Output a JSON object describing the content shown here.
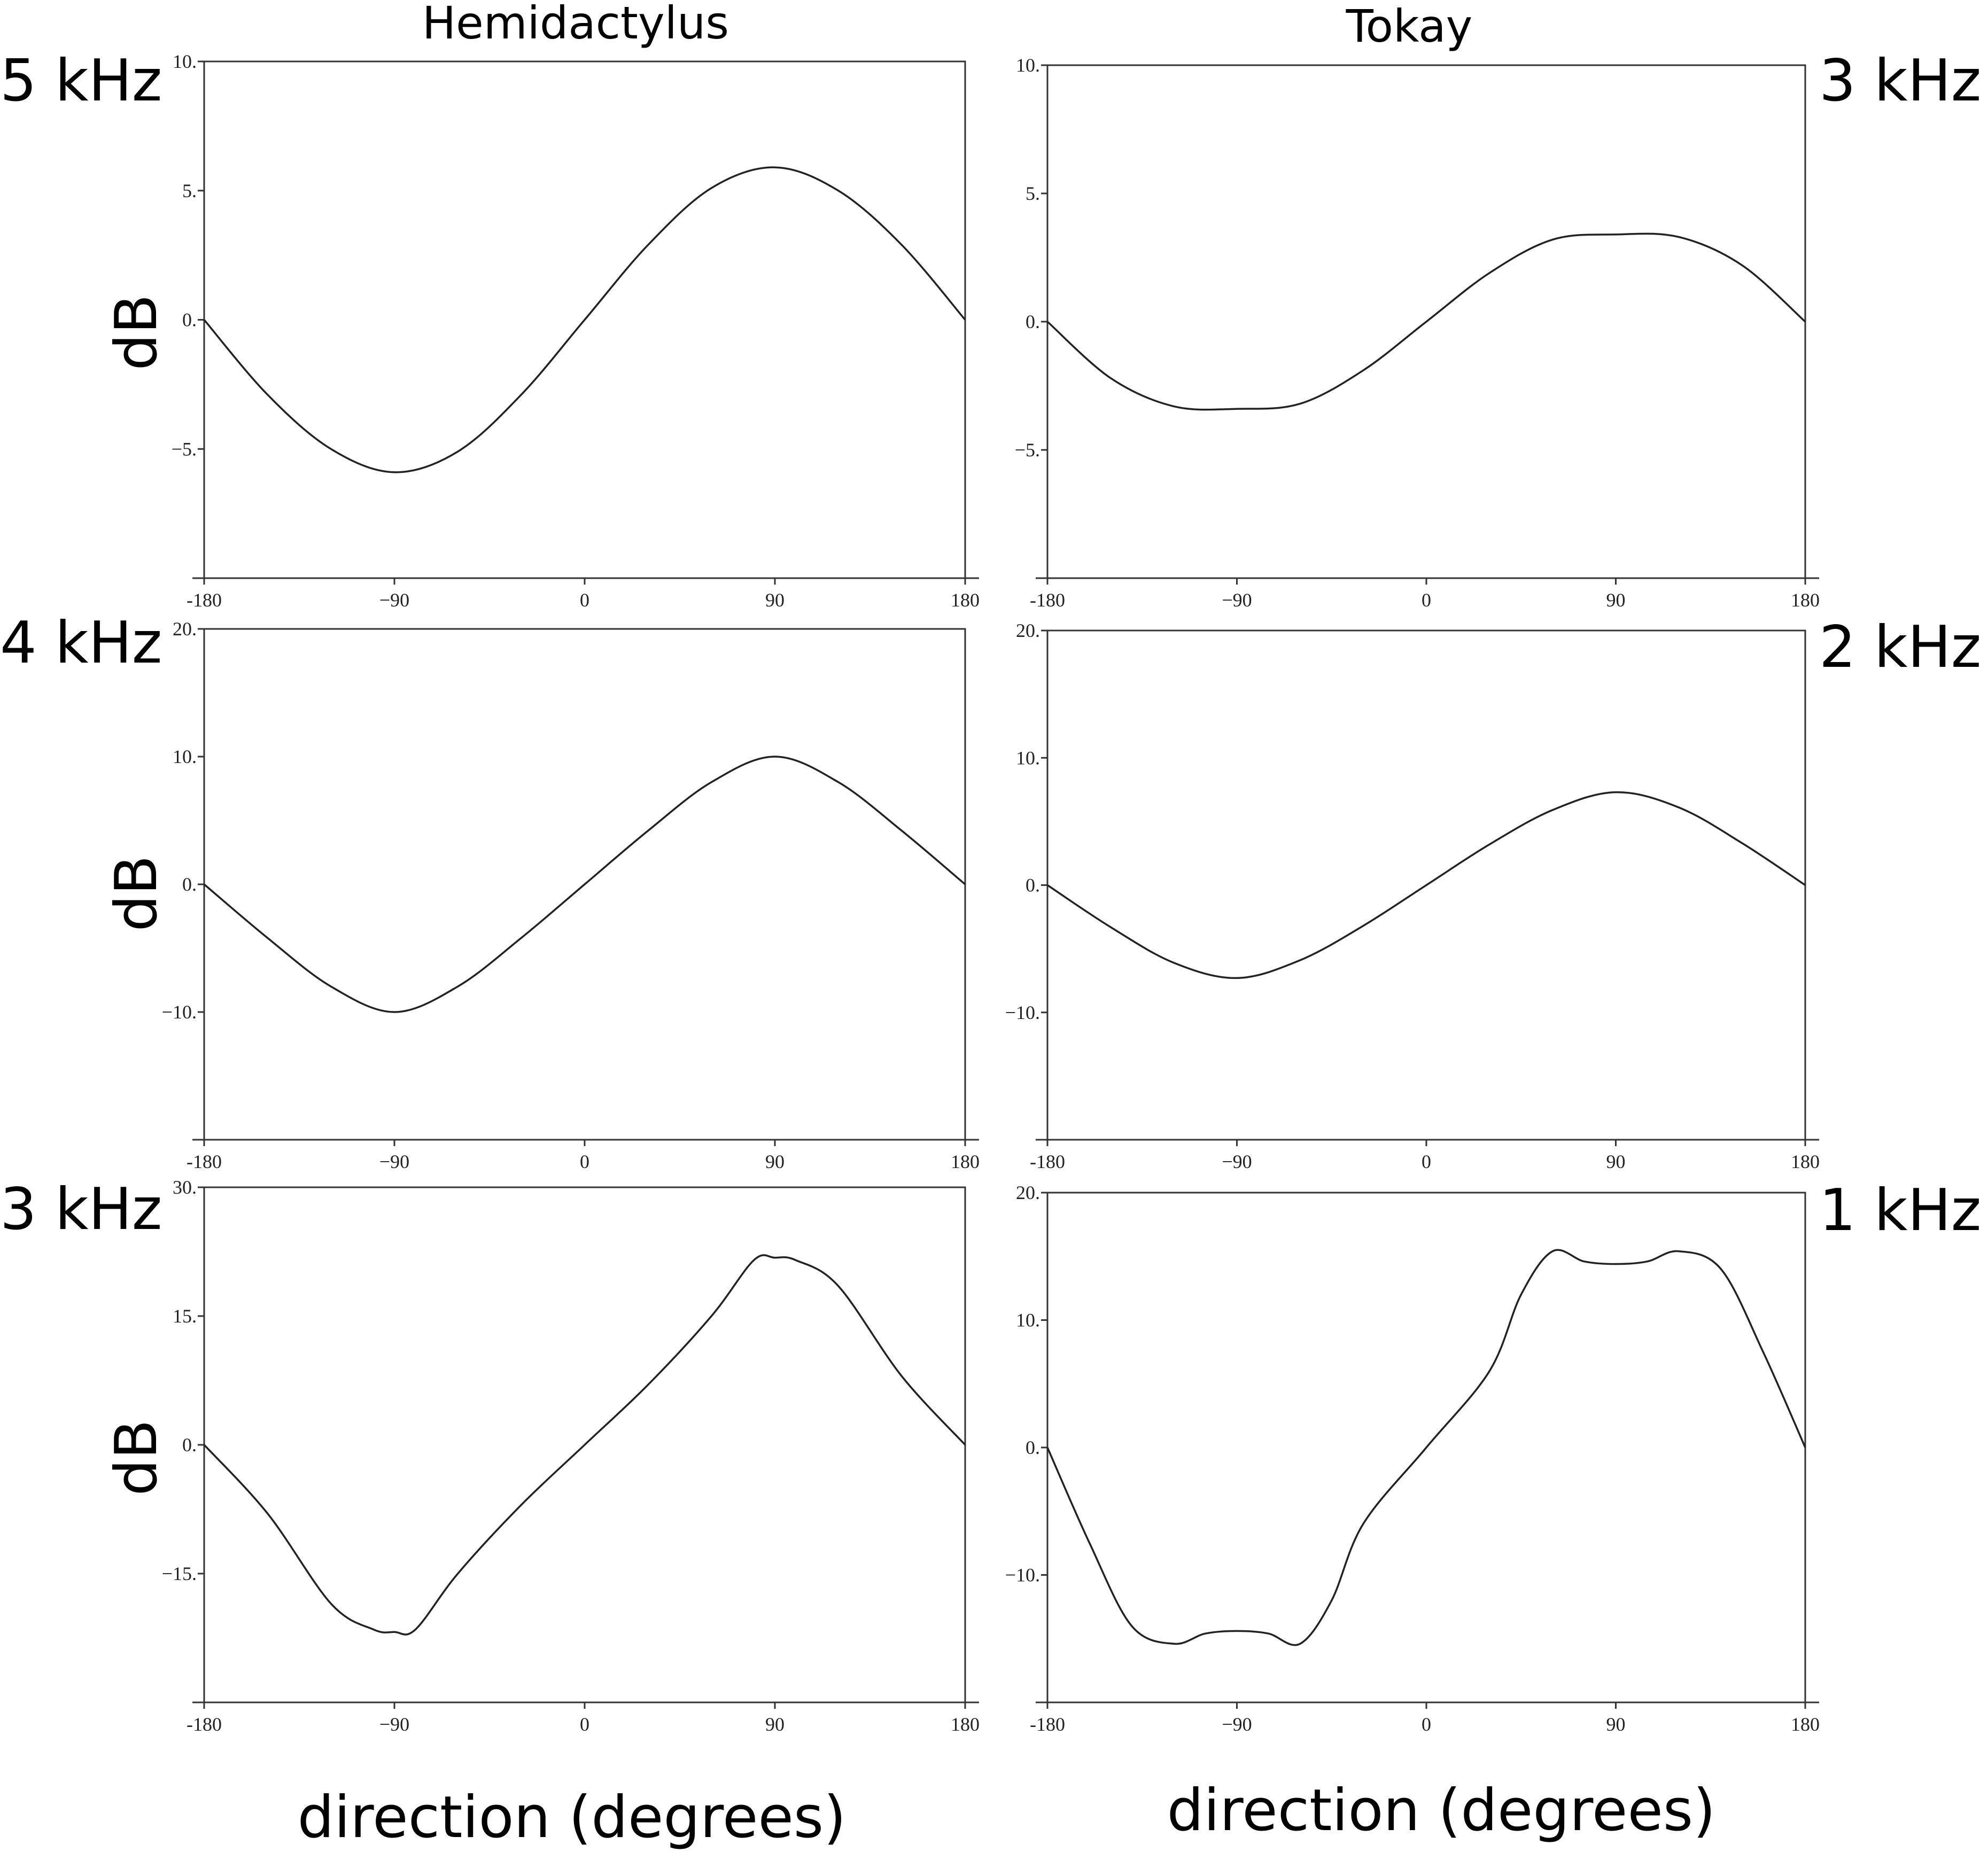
{
  "columns": [
    "Hemidactylus",
    "Tokay"
  ],
  "xlabel": "direction (degrees)",
  "ylabel": "dB",
  "chart_data": [
    {
      "type": "line",
      "species": "Hemidactylus",
      "frequency": "5 kHz",
      "xlim": [
        -180,
        180
      ],
      "ylim": [
        -10,
        10
      ],
      "xticks": [
        "-180",
        "−90",
        "0",
        "90",
        "180"
      ],
      "xtick_values": [
        -180,
        -90,
        0,
        90,
        180
      ],
      "yticks": [
        "10.",
        "5.",
        "0.",
        "−5."
      ],
      "ytick_values": [
        10,
        5,
        0,
        -5
      ],
      "series": [
        {
          "x": [
            -180,
            -150,
            -120,
            -90,
            -60,
            -30,
            0,
            30,
            60,
            90,
            120,
            150,
            180
          ],
          "y": [
            0,
            -2.9,
            -5.0,
            -5.9,
            -5.1,
            -2.9,
            0,
            2.9,
            5.1,
            5.9,
            5.0,
            2.9,
            0
          ]
        }
      ]
    },
    {
      "type": "line",
      "species": "Tokay",
      "frequency": "3 kHz",
      "xlim": [
        -180,
        180
      ],
      "ylim": [
        -10,
        10
      ],
      "xticks": [
        "-180",
        "−90",
        "0",
        "90",
        "180"
      ],
      "xtick_values": [
        -180,
        -90,
        0,
        90,
        180
      ],
      "yticks": [
        "10.",
        "5.",
        "0.",
        "−5."
      ],
      "ytick_values": [
        10,
        5,
        0,
        -5
      ],
      "series": [
        {
          "x": [
            -180,
            -150,
            -120,
            -90,
            -60,
            -30,
            0,
            30,
            60,
            90,
            120,
            150,
            180
          ],
          "y": [
            0,
            -2.2,
            -3.3,
            -3.4,
            -3.2,
            -1.9,
            0,
            1.9,
            3.2,
            3.4,
            3.3,
            2.2,
            0
          ]
        }
      ]
    },
    {
      "type": "line",
      "species": "Hemidactylus",
      "frequency": "4 kHz",
      "xlim": [
        -180,
        180
      ],
      "ylim": [
        -20,
        20
      ],
      "xticks": [
        "-180",
        "−90",
        "0",
        "90",
        "180"
      ],
      "xtick_values": [
        -180,
        -90,
        0,
        90,
        180
      ],
      "yticks": [
        "20.",
        "10.",
        "0.",
        "−10."
      ],
      "ytick_values": [
        20,
        10,
        0,
        -10
      ],
      "series": [
        {
          "x": [
            -180,
            -150,
            -120,
            -90,
            -60,
            -30,
            0,
            30,
            60,
            90,
            120,
            150,
            180
          ],
          "y": [
            0,
            -4.2,
            -8.0,
            -10.0,
            -8.0,
            -4.2,
            0,
            4.2,
            8.0,
            10.0,
            8.0,
            4.2,
            0
          ]
        }
      ]
    },
    {
      "type": "line",
      "species": "Tokay",
      "frequency": "2 kHz",
      "xlim": [
        -180,
        180
      ],
      "ylim": [
        -20,
        20
      ],
      "xticks": [
        "-180",
        "−90",
        "0",
        "90",
        "180"
      ],
      "xtick_values": [
        -180,
        -90,
        0,
        90,
        180
      ],
      "yticks": [
        "20.",
        "10.",
        "0.",
        "−10."
      ],
      "ytick_values": [
        20,
        10,
        0,
        -10
      ],
      "series": [
        {
          "x": [
            -180,
            -150,
            -120,
            -90,
            -60,
            -30,
            0,
            30,
            60,
            90,
            120,
            150,
            180
          ],
          "y": [
            0,
            -3.3,
            -6.1,
            -7.3,
            -5.9,
            -3.2,
            0,
            3.2,
            5.9,
            7.3,
            6.1,
            3.3,
            0
          ]
        }
      ]
    },
    {
      "type": "line",
      "species": "Hemidactylus",
      "frequency": "3 kHz",
      "xlim": [
        -180,
        180
      ],
      "ylim": [
        -30,
        30
      ],
      "xticks": [
        "-180",
        "−90",
        "0",
        "90",
        "180"
      ],
      "xtick_values": [
        -180,
        -90,
        0,
        90,
        180
      ],
      "yticks": [
        "30.",
        "15.",
        "0.",
        "−15."
      ],
      "ytick_values": [
        30,
        15,
        0,
        -15
      ],
      "series": [
        {
          "x": [
            -180,
            -150,
            -120,
            -100,
            -90,
            -80,
            -60,
            -30,
            0,
            30,
            60,
            80,
            90,
            100,
            120,
            150,
            180
          ],
          "y": [
            0,
            -8.0,
            -18.5,
            -21.5,
            -21.8,
            -21.5,
            -15.0,
            -7.0,
            0,
            7.0,
            15.0,
            21.5,
            21.8,
            21.5,
            18.5,
            8.0,
            0
          ]
        }
      ]
    },
    {
      "type": "line",
      "species": "Tokay",
      "frequency": "1 kHz",
      "xlim": [
        -180,
        180
      ],
      "ylim": [
        -20,
        20
      ],
      "xticks": [
        "-180",
        "−90",
        "0",
        "90",
        "180"
      ],
      "xtick_values": [
        -180,
        -90,
        0,
        90,
        180
      ],
      "yticks": [
        "20.",
        "10.",
        "0.",
        "−10."
      ],
      "ytick_values": [
        20,
        10,
        0,
        -10
      ],
      "series": [
        {
          "x": [
            -180,
            -160,
            -140,
            -120,
            -105,
            -90,
            -75,
            -60,
            -45,
            -30,
            0,
            30,
            45,
            60,
            75,
            90,
            105,
            120,
            140,
            160,
            180
          ],
          "y": [
            0,
            -7.5,
            -14.0,
            -15.4,
            -14.6,
            -14.4,
            -14.6,
            -15.4,
            -12.0,
            -6.0,
            0,
            6.0,
            12.0,
            15.4,
            14.6,
            14.4,
            14.6,
            15.4,
            14.0,
            7.5,
            0
          ]
        }
      ]
    }
  ]
}
